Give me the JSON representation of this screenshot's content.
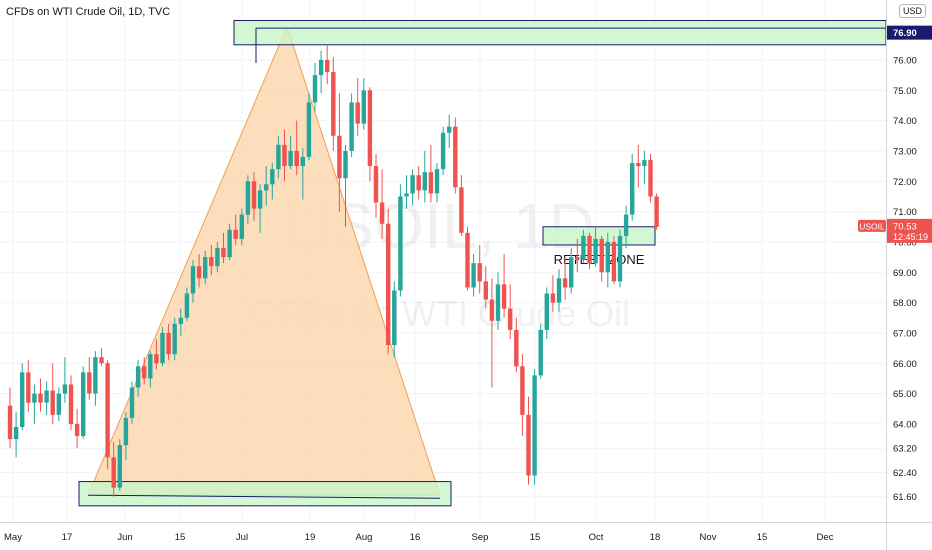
{
  "header": {
    "title": "CFDs on WTI Crude Oil, 1D, TVC",
    "currency": "USD"
  },
  "watermark": {
    "symbol": "USOIL, 1D",
    "name": "CFDs on WTI Crude Oil"
  },
  "colors": {
    "up": "#26a69a",
    "down": "#ef5350",
    "grid": "#f0f3fa",
    "axis_text": "#131722",
    "zone_fill": "#c8f5c8",
    "zone_border": "#1a1a6e",
    "triangle_fill": "#fbd7b0",
    "triangle_stroke": "#f0a050",
    "price_label_bg": "#ef5350",
    "top_label_bg": "#1a1a6e"
  },
  "chart_data": {
    "type": "candlestick",
    "title": "CFDs on WTI Crude Oil, 1D, TVC",
    "ylim": [
      60.8,
      77.35
    ],
    "y_ticks": [
      61.6,
      62.4,
      63.2,
      64.0,
      65.0,
      66.0,
      67.0,
      68.0,
      69.0,
      70.0,
      71.0,
      72.0,
      73.0,
      74.0,
      75.0,
      76.0,
      76.9
    ],
    "x_ticks": [
      "May",
      "17",
      "Jun",
      "15",
      "Jul",
      "19",
      "Aug",
      "16",
      "Sep",
      "15",
      "Oct",
      "18",
      "Nov",
      "15",
      "Dec"
    ],
    "grid": true,
    "last_price": {
      "value": "70.53",
      "symbol": "USOIL",
      "countdown": "12:45:19"
    },
    "top_price_label": "76.90",
    "candles": [
      [
        64.6,
        65.2,
        63.2,
        63.5
      ],
      [
        63.5,
        64.4,
        62.9,
        63.9
      ],
      [
        63.9,
        66.0,
        63.8,
        65.7
      ],
      [
        65.7,
        66.1,
        64.4,
        64.7
      ],
      [
        64.7,
        65.3,
        64.0,
        65.0
      ],
      [
        65.0,
        65.5,
        64.4,
        64.7
      ],
      [
        64.7,
        65.4,
        64.3,
        65.1
      ],
      [
        65.1,
        66.0,
        64.0,
        64.3
      ],
      [
        64.3,
        65.2,
        64.1,
        65.0
      ],
      [
        65.0,
        66.2,
        64.7,
        65.3
      ],
      [
        65.3,
        65.6,
        63.8,
        64.0
      ],
      [
        64.0,
        64.5,
        63.2,
        63.6
      ],
      [
        63.6,
        65.9,
        63.5,
        65.7
      ],
      [
        65.7,
        66.2,
        64.8,
        65.0
      ],
      [
        65.0,
        66.4,
        64.6,
        66.2
      ],
      [
        66.2,
        66.5,
        65.9,
        66.0
      ],
      [
        66.0,
        66.1,
        62.5,
        62.9
      ],
      [
        62.9,
        63.4,
        61.6,
        61.9
      ],
      [
        61.9,
        63.5,
        61.8,
        63.3
      ],
      [
        63.3,
        64.4,
        62.8,
        64.2
      ],
      [
        64.2,
        65.4,
        64.0,
        65.2
      ],
      [
        65.2,
        66.1,
        64.9,
        65.9
      ],
      [
        65.9,
        66.2,
        65.3,
        65.5
      ],
      [
        65.5,
        66.4,
        65.2,
        66.3
      ],
      [
        66.3,
        66.8,
        65.8,
        66.0
      ],
      [
        66.0,
        67.2,
        65.9,
        67.0
      ],
      [
        67.0,
        67.3,
        66.1,
        66.3
      ],
      [
        66.3,
        67.5,
        66.1,
        67.3
      ],
      [
        67.3,
        67.8,
        66.9,
        67.5
      ],
      [
        67.5,
        68.5,
        67.4,
        68.3
      ],
      [
        68.3,
        69.4,
        68.0,
        69.2
      ],
      [
        69.2,
        69.6,
        68.5,
        68.8
      ],
      [
        68.8,
        69.7,
        68.6,
        69.5
      ],
      [
        69.5,
        69.9,
        68.9,
        69.2
      ],
      [
        69.2,
        70.0,
        69.0,
        69.8
      ],
      [
        69.8,
        70.3,
        69.3,
        69.5
      ],
      [
        69.5,
        70.6,
        69.4,
        70.4
      ],
      [
        70.4,
        70.9,
        69.9,
        70.1
      ],
      [
        70.1,
        71.1,
        69.9,
        70.9
      ],
      [
        70.9,
        72.2,
        70.6,
        72.0
      ],
      [
        72.0,
        72.3,
        70.7,
        71.1
      ],
      [
        71.1,
        71.9,
        70.3,
        71.7
      ],
      [
        71.7,
        72.5,
        71.2,
        71.9
      ],
      [
        71.9,
        72.6,
        71.4,
        72.4
      ],
      [
        72.4,
        73.5,
        72.1,
        73.2
      ],
      [
        73.2,
        73.7,
        72.0,
        72.5
      ],
      [
        72.5,
        73.5,
        72.4,
        73.0
      ],
      [
        73.0,
        74.0,
        72.2,
        72.5
      ],
      [
        72.5,
        73.1,
        71.4,
        72.8
      ],
      [
        72.8,
        74.9,
        72.7,
        74.6
      ],
      [
        74.6,
        75.9,
        74.3,
        75.5
      ],
      [
        75.5,
        76.3,
        74.9,
        76.0
      ],
      [
        76.0,
        76.5,
        75.2,
        75.6
      ],
      [
        75.6,
        76.1,
        73.0,
        73.5
      ],
      [
        73.5,
        74.9,
        71.0,
        72.1
      ],
      [
        72.1,
        73.2,
        70.5,
        73.0
      ],
      [
        73.0,
        74.9,
        72.8,
        74.6
      ],
      [
        74.6,
        75.4,
        73.5,
        73.9
      ],
      [
        73.9,
        75.4,
        73.7,
        75.0
      ],
      [
        75.0,
        75.1,
        72.0,
        72.5
      ],
      [
        72.5,
        72.9,
        70.8,
        71.3
      ],
      [
        71.3,
        72.4,
        70.1,
        70.6
      ],
      [
        70.6,
        71.1,
        66.3,
        66.6
      ],
      [
        66.6,
        68.7,
        66.2,
        68.4
      ],
      [
        68.4,
        71.9,
        68.2,
        71.5
      ],
      [
        71.5,
        72.2,
        71.1,
        71.6
      ],
      [
        71.6,
        72.4,
        71.2,
        72.2
      ],
      [
        72.2,
        72.5,
        71.4,
        71.7
      ],
      [
        71.7,
        73.0,
        71.3,
        72.3
      ],
      [
        72.3,
        73.2,
        71.3,
        71.6
      ],
      [
        71.6,
        72.6,
        71.3,
        72.4
      ],
      [
        72.4,
        73.8,
        72.2,
        73.6
      ],
      [
        73.6,
        74.2,
        73.1,
        73.8
      ],
      [
        73.8,
        74.1,
        71.6,
        71.8
      ],
      [
        71.8,
        72.2,
        70.2,
        70.3
      ],
      [
        70.3,
        70.5,
        68.4,
        68.5
      ],
      [
        68.5,
        69.6,
        68.2,
        69.3
      ],
      [
        69.3,
        69.9,
        68.3,
        68.7
      ],
      [
        68.7,
        69.2,
        67.8,
        68.1
      ],
      [
        68.1,
        68.8,
        65.2,
        67.4
      ],
      [
        67.4,
        69.0,
        67.1,
        68.6
      ],
      [
        68.6,
        69.6,
        67.5,
        67.8
      ],
      [
        67.8,
        68.6,
        66.8,
        67.1
      ],
      [
        67.1,
        67.5,
        65.7,
        65.9
      ],
      [
        65.9,
        66.3,
        63.6,
        64.3
      ],
      [
        64.3,
        64.9,
        62.0,
        62.3
      ],
      [
        62.3,
        65.8,
        62.0,
        65.6
      ],
      [
        65.6,
        67.3,
        65.5,
        67.1
      ],
      [
        67.1,
        68.5,
        66.8,
        68.3
      ],
      [
        68.3,
        68.9,
        67.7,
        68.0
      ],
      [
        68.0,
        69.1,
        67.7,
        68.8
      ],
      [
        68.8,
        69.5,
        68.1,
        68.5
      ],
      [
        68.5,
        69.8,
        68.3,
        69.5
      ],
      [
        69.5,
        70.1,
        69.0,
        69.4
      ],
      [
        69.4,
        70.4,
        69.3,
        70.2
      ],
      [
        70.2,
        70.3,
        69.1,
        69.3
      ],
      [
        69.3,
        70.5,
        69.2,
        70.1
      ],
      [
        70.1,
        70.2,
        68.7,
        69.0
      ],
      [
        69.0,
        70.3,
        68.5,
        70.0
      ],
      [
        70.0,
        70.2,
        68.6,
        68.7
      ],
      [
        68.7,
        70.4,
        68.5,
        70.2
      ],
      [
        70.2,
        71.2,
        69.8,
        70.9
      ],
      [
        70.9,
        72.9,
        70.7,
        72.6
      ],
      [
        72.6,
        73.2,
        71.8,
        72.5
      ],
      [
        72.5,
        73.0,
        71.9,
        72.7
      ],
      [
        72.7,
        72.9,
        71.3,
        71.5
      ],
      [
        71.5,
        71.6,
        70.4,
        70.5
      ]
    ],
    "annotations": [
      {
        "type": "zone",
        "label": "",
        "y": [
          76.5,
          77.3
        ]
      },
      {
        "type": "zone",
        "label": "RETEST ZONE",
        "y": [
          69.9,
          70.5
        ]
      },
      {
        "type": "zone",
        "label": "",
        "y": [
          61.3,
          62.1
        ]
      },
      {
        "type": "triangle",
        "label": "",
        "points_y": [
          61.65,
          77.1,
          61.65
        ]
      }
    ]
  }
}
